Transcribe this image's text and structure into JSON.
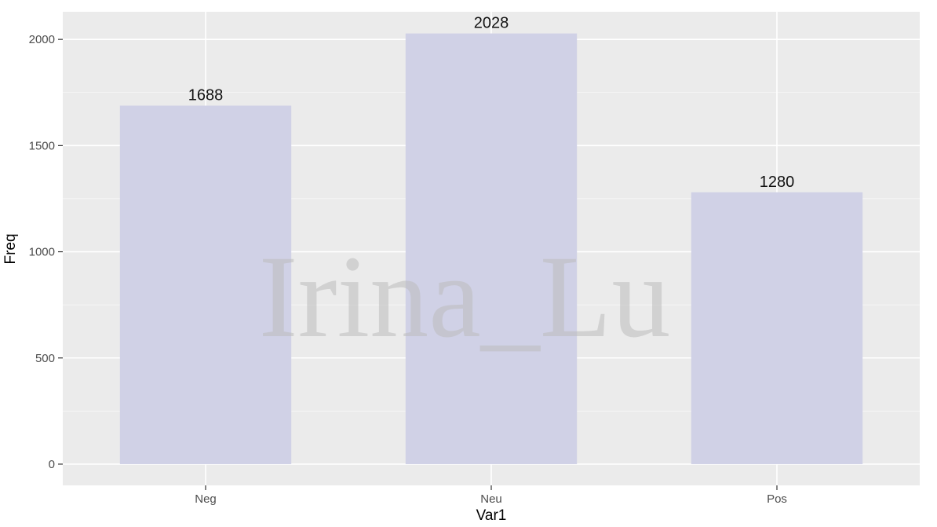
{
  "chart_data": {
    "type": "bar",
    "categories": [
      "Neg",
      "Neu",
      "Pos"
    ],
    "values": [
      1688,
      2028,
      1280
    ],
    "data_labels": [
      "1688",
      "2028",
      "1280"
    ],
    "xlabel": "Var1",
    "ylabel": "Freq",
    "ylim": [
      -100,
      2130
    ],
    "yticks": [
      0,
      500,
      1000,
      1500,
      2000
    ],
    "ytick_labels": [
      "0",
      "500",
      "1000",
      "1500",
      "2000"
    ],
    "grid": true,
    "legend": "none"
  },
  "colors": {
    "panel": "#ebebeb",
    "grid_major": "#ffffff",
    "bar_fill": "#d0d1e6",
    "tick": "#333333"
  },
  "watermark": "Irina_Lu"
}
